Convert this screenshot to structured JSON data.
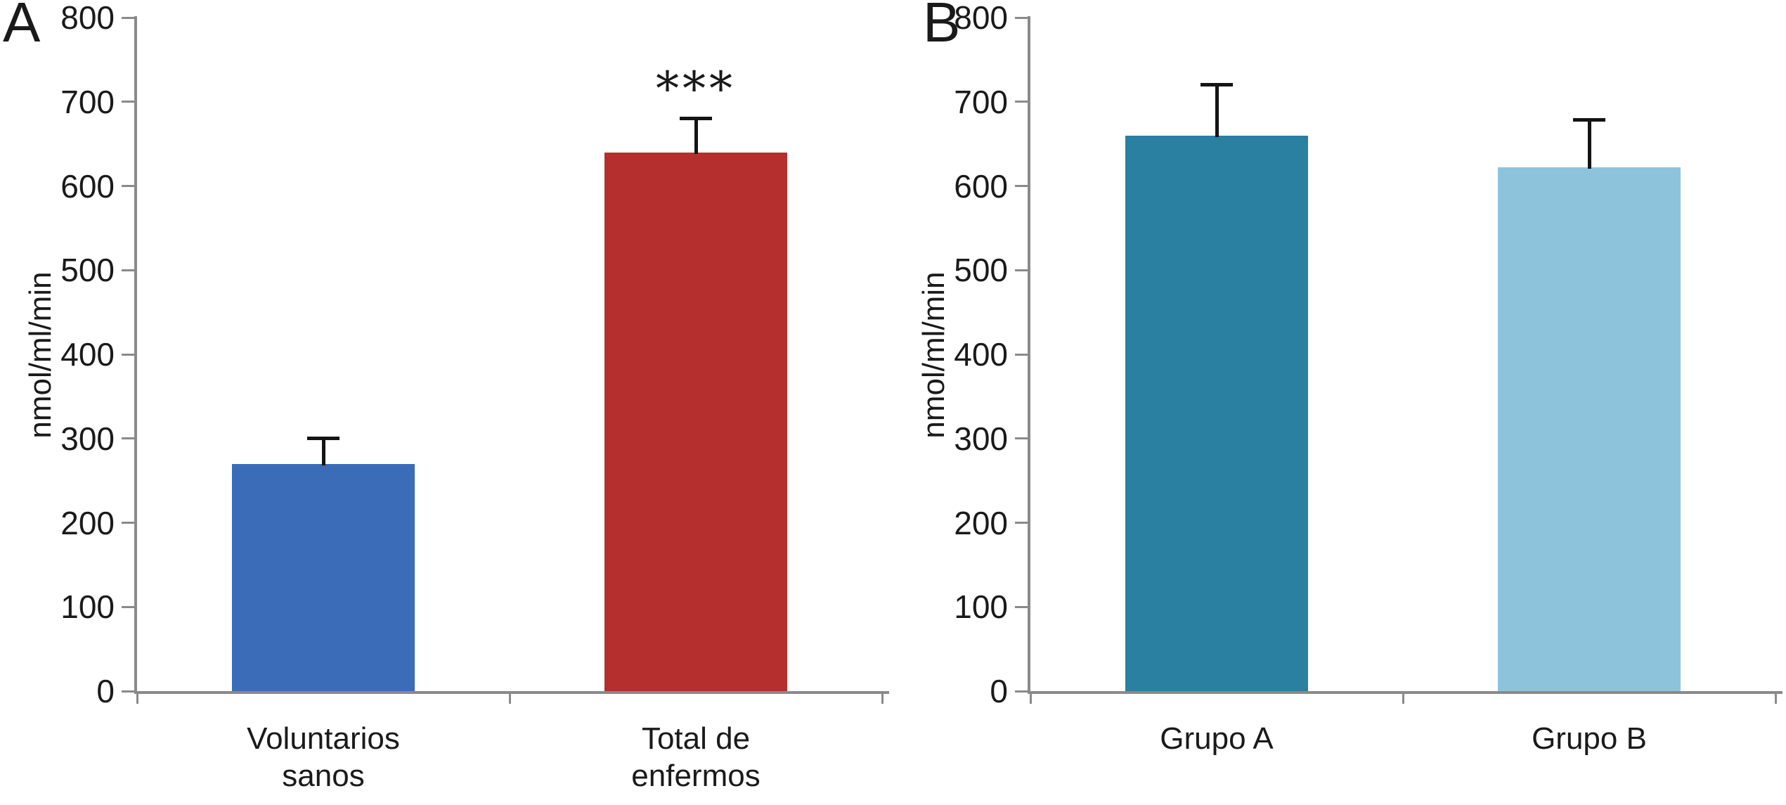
{
  "style": {
    "background": "#ffffff",
    "axis_color": "#8a8a8a",
    "text_color": "#1a1a1a",
    "error_bar_color": "#141414"
  },
  "chart_data": [
    {
      "type": "bar",
      "panel_label": "A",
      "ylabel": "nmol/ml/min",
      "ylim": [
        0,
        800
      ],
      "ytick_step": 100,
      "grid": false,
      "legend": "none",
      "categories": [
        "Voluntarios sanos",
        "Total de enfermos"
      ],
      "category_lines": [
        [
          "Voluntarios",
          "sanos"
        ],
        [
          "Total de",
          "enfermos"
        ]
      ],
      "values": [
        270,
        640
      ],
      "errors_plus": [
        30,
        40
      ],
      "bar_colors": [
        "#3a6cb7",
        "#b42f2d"
      ],
      "annotations": [
        {
          "category_index": 1,
          "text": "***"
        }
      ]
    },
    {
      "type": "bar",
      "panel_label": "B",
      "ylabel": "nmol/ml/min",
      "ylim": [
        0,
        800
      ],
      "ytick_step": 100,
      "grid": false,
      "legend": "none",
      "categories": [
        "Grupo A",
        "Grupo B"
      ],
      "category_lines": [
        [
          "Grupo A"
        ],
        [
          "Grupo B"
        ]
      ],
      "values": [
        660,
        622
      ],
      "errors_plus": [
        60,
        56
      ],
      "bar_colors": [
        "#2a80a1",
        "#8dc4dc"
      ],
      "annotations": []
    }
  ]
}
